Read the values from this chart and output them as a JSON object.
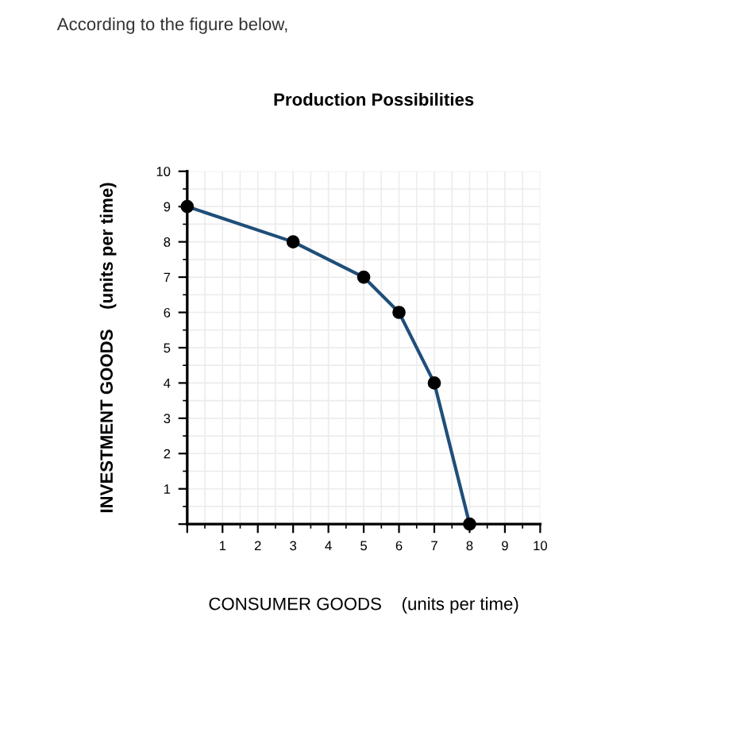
{
  "chart_data": {
    "type": "line",
    "title": "Production Possibilities",
    "xlabel": "CONSUMER GOODS    (units per time)",
    "ylabel": "INVESTMENT GOODS    (units per time)",
    "annotations": [
      "According to the figure below,"
    ],
    "x": [
      0,
      3,
      5,
      6,
      7,
      8
    ],
    "series": [
      {
        "color": "#1f4e79",
        "values": [
          9,
          8,
          7,
          6,
          4,
          0
        ]
      }
    ],
    "xlim": [
      0,
      10
    ],
    "ylim": [
      0,
      10
    ],
    "xticks": [
      {
        "value": 0,
        "label": null
      },
      1,
      2,
      3,
      4,
      5,
      6,
      7,
      8,
      9,
      10
    ],
    "yticks": [
      {
        "value": 0,
        "label": null
      },
      1,
      2,
      3,
      4,
      5,
      6,
      7,
      8,
      9,
      10
    ],
    "grid": true,
    "marker": "circle",
    "line_style": "solid"
  }
}
